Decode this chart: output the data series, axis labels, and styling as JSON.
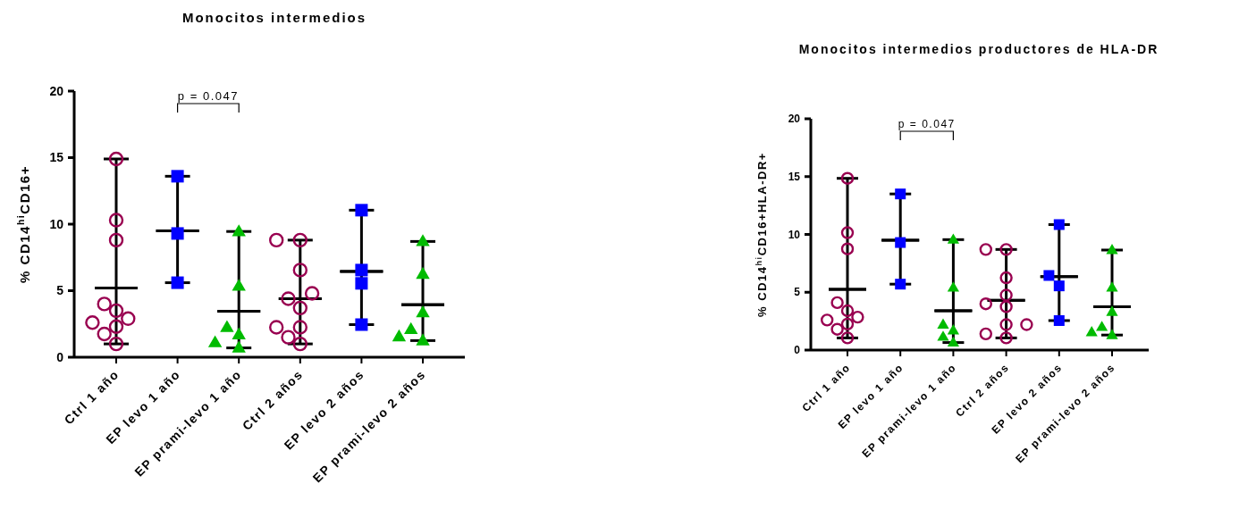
{
  "chart_data": [
    {
      "type": "box",
      "title": "Monocitos intermedios",
      "ylabel": "% CD14$^{hi}$CD16+",
      "categories": [
        "Ctrl 1 año",
        "EP levo 1 año",
        "EP prami-levo 1 año",
        "Ctrl 2 años",
        "EP levo 2 años",
        "EP prami-levo 2 años"
      ],
      "ylim": [
        0,
        20
      ],
      "yticks": [
        0,
        5,
        10,
        15,
        20
      ],
      "annotations": [
        "p = 0.047"
      ],
      "boxes": [
        {
          "low": 1.0,
          "q1": 5.2,
          "median": 5.2,
          "q3": 5.2,
          "high": 14.9
        },
        {
          "low": 5.6,
          "q1": 9.5,
          "median": 9.5,
          "q3": 9.5,
          "high": 13.6
        },
        {
          "low": 0.7,
          "q1": 3.45,
          "median": 3.45,
          "q3": 3.45,
          "high": 9.45
        },
        {
          "low": 1.0,
          "q1": 4.4,
          "median": 4.4,
          "q3": 4.4,
          "high": 8.8
        },
        {
          "low": 2.45,
          "q1": 6.45,
          "median": 6.45,
          "q3": 6.45,
          "high": 11.05
        },
        {
          "low": 1.25,
          "q1": 3.95,
          "median": 3.95,
          "q3": 3.95,
          "high": 8.7
        }
      ],
      "series": [
        {
          "type": "scatter",
          "marker": "circle",
          "color": "#990050",
          "x": [
            "Ctrl 1 año",
            "Ctrl 1 año",
            "Ctrl 1 año",
            "Ctrl 1 año",
            "Ctrl 1 año",
            "Ctrl 1 año",
            "Ctrl 1 año",
            "Ctrl 1 año",
            "Ctrl 1 año",
            "Ctrl 1 año"
          ],
          "values": [
            14.9,
            10.3,
            8.8,
            4.0,
            3.5,
            2.9,
            2.6,
            2.3,
            1.75,
            1.0
          ]
        },
        {
          "type": "scatter",
          "marker": "square",
          "color": "#0000ff",
          "x": [
            "EP levo 1 año",
            "EP levo 1 año",
            "EP levo 1 año"
          ],
          "values": [
            13.6,
            9.3,
            5.6
          ]
        },
        {
          "type": "scatter",
          "marker": "triangle",
          "color": "#00bb00",
          "x": [
            "EP prami-levo 1 año",
            "EP prami-levo 1 año",
            "EP prami-levo 1 año",
            "EP prami-levo 1 año",
            "EP prami-levo 1 año",
            "EP prami-levo 1 año"
          ],
          "values": [
            9.45,
            5.35,
            2.25,
            1.7,
            1.1,
            0.7
          ]
        },
        {
          "type": "scatter",
          "marker": "circle",
          "color": "#990050",
          "x": [
            "Ctrl 2 años",
            "Ctrl 2 años",
            "Ctrl 2 años",
            "Ctrl 2 años",
            "Ctrl 2 años",
            "Ctrl 2 años",
            "Ctrl 2 años",
            "Ctrl 2 años",
            "Ctrl 2 años",
            "Ctrl 2 años"
          ],
          "values": [
            8.8,
            8.8,
            6.55,
            4.8,
            4.4,
            3.7,
            2.25,
            2.25,
            1.5,
            1.0
          ]
        },
        {
          "type": "scatter",
          "marker": "square",
          "color": "#0000ff",
          "x": [
            "EP levo 2 años",
            "EP levo 2 años",
            "EP levo 2 años",
            "EP levo 2 años"
          ],
          "values": [
            11.05,
            6.55,
            5.55,
            2.45
          ]
        },
        {
          "type": "scatter",
          "marker": "triangle",
          "color": "#00bb00",
          "x": [
            "EP prami-levo 2 años",
            "EP prami-levo 2 años",
            "EP prami-levo 2 años",
            "EP prami-levo 2 años",
            "EP prami-levo 2 años",
            "EP prami-levo 2 años"
          ],
          "values": [
            8.7,
            6.25,
            3.35,
            2.1,
            1.55,
            1.25
          ]
        }
      ]
    },
    {
      "type": "box",
      "title": "Monocitos intermedios productores de HLA-DR",
      "ylabel": "% CD14$^{hi}$CD16+HLA-DR+",
      "categories": [
        "Ctrl 1 año",
        "EP levo 1 año",
        "EP prami-levo 1 año",
        "Ctrl 2 años",
        "EP levo 2 años",
        "EP prami-levo 2 años"
      ],
      "ylim": [
        0,
        20
      ],
      "yticks": [
        0,
        5,
        10,
        15,
        20
      ],
      "annotations": [
        "p = 0.047"
      ],
      "boxes": [
        {
          "low": 1.05,
          "q1": 5.25,
          "median": 5.25,
          "q3": 5.25,
          "high": 14.85
        },
        {
          "low": 5.7,
          "q1": 9.5,
          "median": 9.5,
          "q3": 9.5,
          "high": 13.5
        },
        {
          "low": 0.65,
          "q1": 3.4,
          "median": 3.4,
          "q3": 3.4,
          "high": 9.55
        },
        {
          "low": 1.05,
          "q1": 4.3,
          "median": 4.3,
          "q3": 4.3,
          "high": 8.7
        },
        {
          "low": 2.55,
          "q1": 6.35,
          "median": 6.35,
          "q3": 6.35,
          "high": 10.85
        },
        {
          "low": 1.3,
          "q1": 3.75,
          "median": 3.75,
          "q3": 3.75,
          "high": 8.65
        }
      ],
      "series": [
        {
          "type": "scatter",
          "marker": "circle",
          "color": "#990050",
          "x": [
            "Ctrl 1 año",
            "Ctrl 1 año",
            "Ctrl 1 año",
            "Ctrl 1 año",
            "Ctrl 1 año",
            "Ctrl 1 año",
            "Ctrl 1 año",
            "Ctrl 1 año",
            "Ctrl 1 año",
            "Ctrl 1 año"
          ],
          "values": [
            14.85,
            10.15,
            8.75,
            4.1,
            3.4,
            2.85,
            2.6,
            2.25,
            1.8,
            1.05
          ]
        },
        {
          "type": "scatter",
          "marker": "square",
          "color": "#0000ff",
          "x": [
            "EP levo 1 año",
            "EP levo 1 año",
            "EP levo 1 año"
          ],
          "values": [
            13.5,
            9.3,
            5.7
          ]
        },
        {
          "type": "scatter",
          "marker": "triangle",
          "color": "#00bb00",
          "x": [
            "EP prami-levo 1 año",
            "EP prami-levo 1 año",
            "EP prami-levo 1 año",
            "EP prami-levo 1 año",
            "EP prami-levo 1 año",
            "EP prami-levo 1 año"
          ],
          "values": [
            9.55,
            5.4,
            2.2,
            1.7,
            1.15,
            0.65
          ]
        },
        {
          "type": "scatter",
          "marker": "circle",
          "color": "#990050",
          "x": [
            "Ctrl 2 años",
            "Ctrl 2 años",
            "Ctrl 2 años",
            "Ctrl 2 años",
            "Ctrl 2 años",
            "Ctrl 2 años",
            "Ctrl 2 años",
            "Ctrl 2 años",
            "Ctrl 2 años",
            "Ctrl 2 años"
          ],
          "values": [
            8.7,
            8.7,
            6.25,
            4.75,
            4.0,
            3.75,
            2.2,
            2.2,
            1.4,
            1.05
          ]
        },
        {
          "type": "scatter",
          "marker": "square",
          "color": "#0000ff",
          "x": [
            "EP levo 2 años",
            "EP levo 2 años",
            "EP levo 2 años",
            "EP levo 2 años"
          ],
          "values": [
            10.85,
            6.45,
            5.55,
            2.55
          ]
        },
        {
          "type": "scatter",
          "marker": "triangle",
          "color": "#00bb00",
          "x": [
            "EP prami-levo 2 años",
            "EP prami-levo 2 años",
            "EP prami-levo 2 años",
            "EP prami-levo 2 años",
            "EP prami-levo 2 años",
            "EP prami-levo 2 años"
          ],
          "values": [
            8.65,
            5.4,
            3.3,
            2.0,
            1.55,
            1.3
          ]
        }
      ]
    }
  ]
}
